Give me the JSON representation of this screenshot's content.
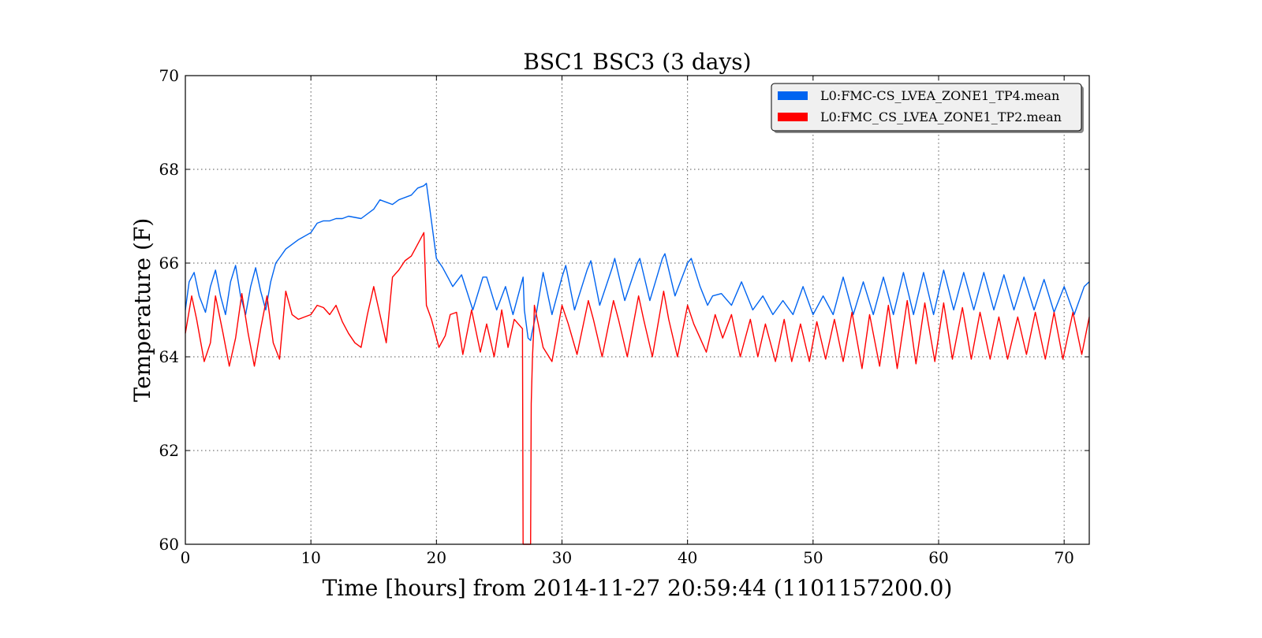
{
  "chart_data": {
    "type": "line",
    "title": "BSC1 BSC3 (3 days)",
    "xlabel": "Time [hours] from 2014-11-27 20:59:44 (1101157200.0)",
    "ylabel": "Temperature (F)",
    "xlim": [
      0,
      72
    ],
    "ylim": [
      60,
      70
    ],
    "xticks": [
      0,
      10,
      20,
      30,
      40,
      50,
      60,
      70
    ],
    "yticks": [
      60,
      62,
      64,
      66,
      68,
      70
    ],
    "grid": true,
    "legend_position": "top-right",
    "series": [
      {
        "name": "L0:FMC-CS_LVEA_ZONE1_TP4.mean",
        "color": "#0064f0",
        "x": [
          0,
          0.3,
          0.7,
          1.1,
          1.6,
          2.0,
          2.4,
          2.8,
          3.2,
          3.6,
          4.0,
          4.4,
          4.8,
          5.2,
          5.6,
          6.0,
          6.4,
          6.8,
          7.2,
          7.6,
          8.0,
          9.0,
          10.0,
          10.5,
          11.0,
          11.5,
          12.0,
          12.5,
          13.0,
          14.0,
          15.0,
          15.5,
          16.0,
          16.5,
          17.0,
          18.0,
          18.5,
          19.0,
          19.2,
          19.5,
          20.0,
          20.5,
          21.0,
          21.3,
          22.0,
          22.9,
          23.7,
          24.0,
          24.8,
          25.5,
          26.1,
          26.9,
          27.0,
          27.3,
          27.5,
          27.6,
          28.0,
          28.5,
          29.2,
          30.0,
          30.3,
          31.0,
          32.0,
          32.3,
          33.0,
          34.0,
          34.2,
          35.0,
          36.0,
          36.2,
          37.0,
          38.0,
          38.2,
          39.0,
          40.0,
          40.3,
          41.0,
          41.6,
          42.0,
          42.7,
          43.5,
          44.3,
          45.2,
          46.0,
          46.8,
          47.6,
          48.4,
          49.2,
          50.0,
          50.8,
          51.6,
          52.4,
          53.2,
          54.0,
          54.8,
          55.6,
          56.4,
          57.2,
          58.0,
          58.8,
          59.6,
          60.4,
          61.2,
          62.0,
          62.8,
          63.6,
          64.4,
          65.2,
          66.0,
          66.8,
          67.6,
          68.4,
          69.2,
          70.0,
          70.8,
          71.6,
          72.0
        ],
        "y": [
          65.0,
          65.6,
          65.8,
          65.3,
          64.95,
          65.5,
          65.85,
          65.3,
          64.9,
          65.6,
          65.95,
          65.3,
          64.9,
          65.5,
          65.9,
          65.4,
          65.0,
          65.6,
          66.0,
          66.15,
          66.3,
          66.5,
          66.65,
          66.85,
          66.9,
          66.9,
          66.95,
          66.95,
          67.0,
          66.95,
          67.15,
          67.35,
          67.3,
          67.25,
          67.35,
          67.45,
          67.6,
          67.65,
          67.7,
          67.1,
          66.1,
          65.9,
          65.65,
          65.5,
          65.75,
          65.0,
          65.7,
          65.7,
          65.0,
          65.5,
          64.9,
          65.7,
          65.0,
          64.4,
          64.35,
          64.5,
          65.0,
          65.8,
          64.9,
          65.7,
          65.95,
          65.0,
          65.85,
          66.05,
          65.1,
          65.9,
          66.1,
          65.2,
          66.0,
          66.1,
          65.2,
          66.1,
          66.2,
          65.3,
          66.0,
          66.1,
          65.5,
          65.1,
          65.3,
          65.35,
          65.1,
          65.6,
          65.0,
          65.3,
          64.9,
          65.2,
          64.9,
          65.5,
          64.9,
          65.3,
          64.9,
          65.7,
          64.9,
          65.6,
          64.9,
          65.7,
          64.9,
          65.8,
          64.9,
          65.8,
          64.9,
          65.85,
          65.0,
          65.8,
          65.0,
          65.8,
          65.0,
          65.75,
          65.0,
          65.7,
          65.0,
          65.65,
          64.95,
          65.5,
          64.9,
          65.5,
          65.6
        ]
      },
      {
        "name": "L0:FMC_CS_LVEA_ZONE1_TP2.mean",
        "color": "#ff0000",
        "x": [
          0,
          0.5,
          0.9,
          1.5,
          2.0,
          2.4,
          3.0,
          3.5,
          4.0,
          4.5,
          5.0,
          5.5,
          6.0,
          6.5,
          7.0,
          7.5,
          8.0,
          8.5,
          9.0,
          9.5,
          10.0,
          10.5,
          11.0,
          11.5,
          12.0,
          12.5,
          13.0,
          13.5,
          14.0,
          14.5,
          15.0,
          15.5,
          16.0,
          16.5,
          17.0,
          17.5,
          18.0,
          18.5,
          19.0,
          19.2,
          19.6,
          20.2,
          20.7,
          21.1,
          21.6,
          22.1,
          22.8,
          23.5,
          24.0,
          24.6,
          25.2,
          25.7,
          26.2,
          26.85,
          26.9,
          26.95,
          27.5,
          27.55,
          27.65,
          27.75,
          27.8,
          28.5,
          29.2,
          30.0,
          30.5,
          31.2,
          32.1,
          32.5,
          33.2,
          34.1,
          34.5,
          35.2,
          36.1,
          36.5,
          37.2,
          38.1,
          38.5,
          39.2,
          40.0,
          40.5,
          41.0,
          41.5,
          42.2,
          42.8,
          43.5,
          44.2,
          45.0,
          45.6,
          46.2,
          47.0,
          47.7,
          48.3,
          49.0,
          49.7,
          50.3,
          51.0,
          51.7,
          52.4,
          53.1,
          53.9,
          54.5,
          55.3,
          56.0,
          56.7,
          57.5,
          58.2,
          58.9,
          59.7,
          60.4,
          61.1,
          61.9,
          62.6,
          63.3,
          64.1,
          64.8,
          65.5,
          66.3,
          67.0,
          67.7,
          68.5,
          69.2,
          69.9,
          70.7,
          71.4,
          72.0
        ],
        "y": [
          64.5,
          65.3,
          64.8,
          63.9,
          64.3,
          65.3,
          64.5,
          63.8,
          64.4,
          65.35,
          64.5,
          63.8,
          64.6,
          65.3,
          64.3,
          63.95,
          65.4,
          64.9,
          64.8,
          64.85,
          64.9,
          65.1,
          65.05,
          64.9,
          65.1,
          64.75,
          64.5,
          64.3,
          64.2,
          64.9,
          65.5,
          64.9,
          64.3,
          65.7,
          65.85,
          66.05,
          66.15,
          66.4,
          66.65,
          65.1,
          64.8,
          64.2,
          64.45,
          64.9,
          64.95,
          64.05,
          65.0,
          64.1,
          64.7,
          64.0,
          65.0,
          64.2,
          64.8,
          64.6,
          60.0,
          60.0,
          60.0,
          63.0,
          64.0,
          64.6,
          65.1,
          64.2,
          63.9,
          65.1,
          64.7,
          64.05,
          65.2,
          64.8,
          64.0,
          65.2,
          64.8,
          64.0,
          65.3,
          64.8,
          64.0,
          65.4,
          64.8,
          64.0,
          65.1,
          64.7,
          64.4,
          64.1,
          64.9,
          64.4,
          64.9,
          64.0,
          64.8,
          64.0,
          64.7,
          63.9,
          64.8,
          63.9,
          64.7,
          63.9,
          64.75,
          63.95,
          64.8,
          63.9,
          64.95,
          63.75,
          64.9,
          63.8,
          65.1,
          63.75,
          65.2,
          63.85,
          65.15,
          63.9,
          65.15,
          63.95,
          65.05,
          63.95,
          64.95,
          63.95,
          64.85,
          63.95,
          64.85,
          64.05,
          64.95,
          63.95,
          64.95,
          63.95,
          64.95,
          64.05,
          64.85
        ]
      }
    ]
  }
}
